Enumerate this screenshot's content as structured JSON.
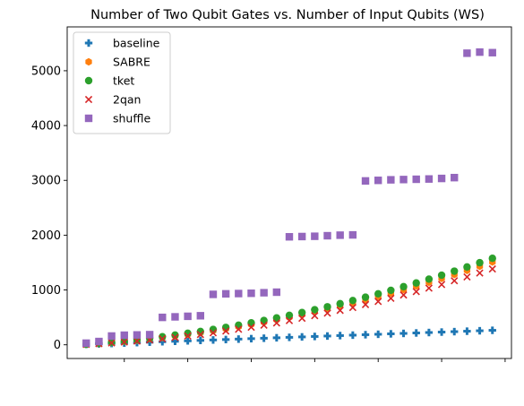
{
  "chart_data": {
    "type": "scatter",
    "title": "Number of Two Qubit Gates vs. Number of Input Qubits (WS)",
    "xlabel": "",
    "ylabel": "",
    "ylim": [
      -250,
      5800
    ],
    "xlim": [
      0.5,
      35.5
    ],
    "yticks": [
      0,
      1000,
      2000,
      3000,
      4000,
      5000
    ],
    "xticks_unlabeled": [
      5,
      10,
      15,
      20,
      25,
      30,
      35
    ],
    "grid": false,
    "legend_placement": "top-left",
    "x": [
      2,
      3,
      4,
      5,
      6,
      7,
      8,
      9,
      10,
      11,
      12,
      13,
      14,
      15,
      16,
      17,
      18,
      19,
      20,
      21,
      22,
      23,
      24,
      25,
      26,
      27,
      28,
      29,
      30,
      31,
      32,
      33,
      34
    ],
    "series": [
      {
        "name": "baseline",
        "marker": "plus",
        "color": "#1f77b4",
        "values": [
          8,
          16,
          24,
          32,
          40,
          48,
          56,
          64,
          72,
          80,
          88,
          96,
          104,
          112,
          120,
          128,
          136,
          144,
          152,
          160,
          168,
          176,
          184,
          192,
          200,
          208,
          216,
          224,
          232,
          240,
          248,
          256,
          264
        ],
        "error": [
          0,
          0,
          0,
          0,
          0,
          0,
          0,
          0,
          0,
          0,
          0,
          0,
          0,
          0,
          0,
          0,
          0,
          0,
          0,
          0,
          0,
          0,
          0,
          0,
          0,
          0,
          0,
          0,
          0,
          0,
          0,
          0,
          0
        ]
      },
      {
        "name": "SABRE",
        "marker": "hexagon",
        "color": "#ff7f0e",
        "values": [
          8,
          22,
          40,
          60,
          82,
          106,
          132,
          160,
          190,
          222,
          256,
          292,
          330,
          370,
          412,
          456,
          502,
          550,
          600,
          652,
          706,
          762,
          820,
          880,
          942,
          1006,
          1072,
          1140,
          1210,
          1282,
          1356,
          1432,
          1510
        ],
        "error": [
          0,
          0,
          0,
          0,
          0,
          0,
          0,
          0,
          0,
          0,
          0,
          0,
          0,
          0,
          0,
          0,
          0,
          0,
          0,
          0,
          0,
          0,
          0,
          0,
          0,
          0,
          0,
          0,
          0,
          0,
          0,
          0,
          0
        ]
      },
      {
        "name": "tket",
        "marker": "circle",
        "color": "#2ca02c",
        "values": [
          10,
          28,
          48,
          70,
          94,
          120,
          148,
          178,
          210,
          244,
          280,
          318,
          358,
          400,
          444,
          490,
          538,
          588,
          640,
          694,
          750,
          808,
          868,
          930,
          994,
          1060,
          1128,
          1198,
          1270,
          1344,
          1420,
          1498,
          1578
        ],
        "error": [
          0,
          0,
          0,
          0,
          0,
          0,
          0,
          0,
          0,
          0,
          0,
          0,
          0,
          0,
          0,
          0,
          0,
          0,
          0,
          0,
          0,
          0,
          0,
          0,
          0,
          0,
          0,
          0,
          0,
          0,
          0,
          0,
          0
        ]
      },
      {
        "name": "2qan",
        "marker": "x",
        "color": "#d62728",
        "values": [
          8,
          20,
          34,
          50,
          68,
          88,
          110,
          134,
          160,
          188,
          218,
          250,
          284,
          320,
          358,
          398,
          440,
          484,
          530,
          578,
          628,
          680,
          734,
          790,
          848,
          908,
          970,
          1034,
          1100,
          1168,
          1238,
          1310,
          1384
        ],
        "error": [
          0,
          0,
          0,
          0,
          0,
          0,
          0,
          0,
          0,
          0,
          0,
          0,
          0,
          0,
          0,
          0,
          0,
          0,
          0,
          0,
          0,
          0,
          0,
          0,
          0,
          0,
          0,
          0,
          0,
          0,
          0,
          0,
          0
        ]
      },
      {
        "name": "shuffle",
        "marker": "square",
        "color": "#9467bd",
        "values": [
          30,
          60,
          160,
          175,
          180,
          185,
          500,
          510,
          520,
          530,
          920,
          930,
          935,
          940,
          950,
          960,
          1970,
          1975,
          1980,
          1990,
          2000,
          2005,
          2990,
          3000,
          3010,
          3015,
          3020,
          3025,
          3035,
          3050,
          5320,
          5340,
          5330
        ],
        "error": [
          0,
          0,
          0,
          0,
          0,
          0,
          0,
          0,
          0,
          0,
          0,
          0,
          0,
          0,
          0,
          0,
          0,
          0,
          0,
          0,
          0,
          0,
          0,
          0,
          0,
          0,
          0,
          0,
          0,
          0,
          0,
          0,
          0
        ]
      }
    ]
  }
}
